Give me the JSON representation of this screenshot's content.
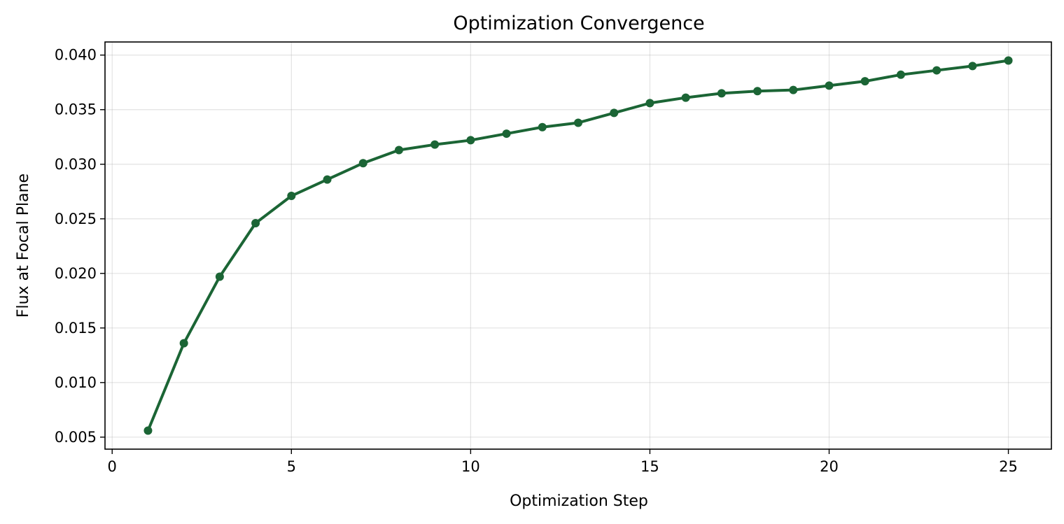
{
  "chart_data": {
    "type": "line",
    "title": "Optimization Convergence",
    "xlabel": "Optimization Step",
    "ylabel": "Flux at Focal Plane",
    "xlim": [
      -0.2,
      26.2
    ],
    "ylim": [
      0.0039,
      0.0412
    ],
    "xticks": [
      0,
      5,
      10,
      15,
      20,
      25
    ],
    "xtick_labels": [
      "0",
      "5",
      "10",
      "15",
      "20",
      "25"
    ],
    "yticks": [
      0.005,
      0.01,
      0.015,
      0.02,
      0.025,
      0.03,
      0.035,
      0.04
    ],
    "ytick_labels": [
      "0.005",
      "0.010",
      "0.015",
      "0.020",
      "0.025",
      "0.030",
      "0.035",
      "0.040"
    ],
    "grid": true,
    "legend": "none",
    "color": "#1b6535",
    "series": [
      {
        "x": [
          1,
          2,
          3,
          4,
          5,
          6,
          7,
          8,
          9,
          10,
          11,
          12,
          13,
          14,
          15,
          16,
          17,
          18,
          19,
          20,
          21,
          22,
          23,
          24,
          25
        ],
        "values": [
          0.0056,
          0.0136,
          0.0197,
          0.0246,
          0.0271,
          0.0286,
          0.0301,
          0.0313,
          0.0318,
          0.0322,
          0.0328,
          0.0334,
          0.0338,
          0.0347,
          0.0356,
          0.0361,
          0.0365,
          0.0367,
          0.0368,
          0.0372,
          0.0376,
          0.0382,
          0.0386,
          0.039,
          0.0395
        ]
      }
    ]
  }
}
